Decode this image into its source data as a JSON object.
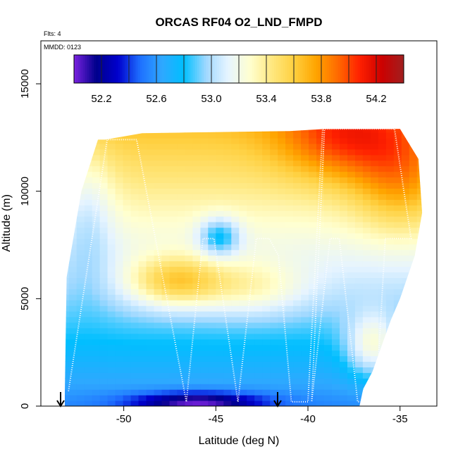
{
  "chart_data": {
    "type": "heatmap",
    "title": "ORCAS RF04 O2_LND_FMPD",
    "notes": {
      "flights": "Flts: 4",
      "date": "MMDD: 0123"
    },
    "xlabel": "Latitude (deg N)",
    "ylabel": "Altitude (m)",
    "xlim": [
      -54.5,
      -33.0
    ],
    "ylim": [
      0,
      17000
    ],
    "x_ticks": [
      -50,
      -45,
      -40,
      -35
    ],
    "y_ticks": [
      0,
      5000,
      10000,
      15000
    ],
    "colorbar": {
      "min": 52.0,
      "max": 54.4,
      "ticks": [
        52.2,
        52.6,
        53.0,
        53.4,
        53.8,
        54.2
      ],
      "tick_labels": [
        "52.2",
        "52.6",
        "53.0",
        "53.4",
        "53.8",
        "54.2"
      ],
      "colors": [
        "#7B22E0",
        "#00008B",
        "#0000CD",
        "#1E6FFF",
        "#2FA8FF",
        "#00BFFF",
        "#9FD8FF",
        "#E6F4FF",
        "#FFFFD0",
        "#FFE880",
        "#FFD040",
        "#FFA500",
        "#FF6A00",
        "#FF2000",
        "#CC0000",
        "#A02020"
      ]
    },
    "field_shape": {
      "top_altitude": [
        [
          -51,
          12400
        ],
        [
          -49,
          12700
        ],
        [
          -41,
          12800
        ],
        [
          -39,
          12900
        ],
        [
          -35,
          12900
        ],
        [
          -34,
          11500
        ],
        [
          -33.8,
          9000
        ],
        [
          -34.2,
          7000
        ],
        [
          -35,
          5000
        ],
        [
          -35.5,
          4000
        ],
        [
          -36,
          2800
        ],
        [
          -36.5,
          1600
        ],
        [
          -37,
          800
        ],
        [
          -37.2,
          0
        ]
      ],
      "left_edge_lat": -53.2
    },
    "flight_track": {
      "lat": [
        -53.0,
        -50.9,
        -49.3,
        -46.6,
        -45.7,
        -45.4,
        -45.1,
        -43.8,
        -42.8,
        -42.1,
        -41.6,
        -40.9,
        -40.0,
        -39.2,
        -37.6,
        -36.8,
        -36.4,
        -35.3,
        -34.4,
        -35.0,
        -35.8,
        -36.3,
        -37.3,
        -38.3,
        -38.8,
        -39.8,
        -39.1
      ],
      "alt": [
        700,
        12400,
        12400,
        200,
        7800,
        7800,
        7800,
        200,
        7800,
        7800,
        7000,
        200,
        200,
        12900,
        12900,
        12900,
        12900,
        12900,
        7800,
        7800,
        7800,
        200,
        200,
        7800,
        7800,
        200,
        12900
      ]
    },
    "sample_field": [
      {
        "lat": -52,
        "alt": 500,
        "value": 52.9
      },
      {
        "lat": -48,
        "alt": 300,
        "value": 52.2
      },
      {
        "lat": -45,
        "alt": 8000,
        "value": 53.0
      },
      {
        "lat": -47,
        "alt": 6000,
        "value": 53.6
      },
      {
        "lat": -40,
        "alt": 11000,
        "value": 53.9
      },
      {
        "lat": -36,
        "alt": 12500,
        "value": 54.3
      },
      {
        "lat": -36,
        "alt": 2500,
        "value": 53.9
      }
    ]
  }
}
